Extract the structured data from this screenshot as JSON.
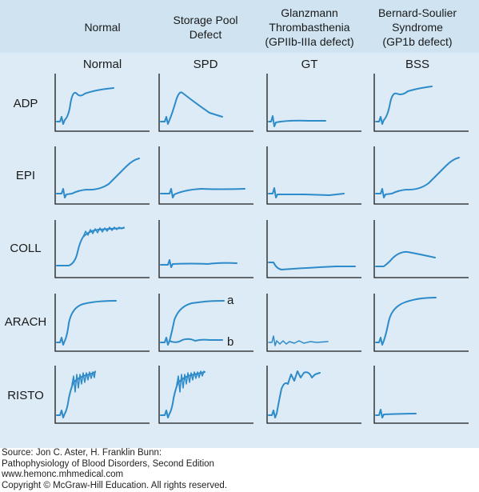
{
  "columns": [
    {
      "header": "Normal",
      "sub": "Normal"
    },
    {
      "header": "Storage Pool\nDefect",
      "sub": "SPD"
    },
    {
      "header": "Glanzmann\nThrombasthenia\n(GPIIb-IIIa defect)",
      "sub": "GT"
    },
    {
      "header": "Bernard-Soulier\nSyndrome\n(GP1b defect)",
      "sub": "BSS"
    }
  ],
  "rows": [
    {
      "label": "ADP"
    },
    {
      "label": "EPI"
    },
    {
      "label": "COLL"
    },
    {
      "label": "ARACH"
    },
    {
      "label": "RISTO"
    }
  ],
  "curve_labels": {
    "a": "a",
    "b": "b"
  },
  "colors": {
    "curve": "#2e8bc9",
    "panel": "#dcebf5",
    "header": "#cfe3f1",
    "axis": "#1a1a1a"
  },
  "source": {
    "line1": "Source: Jon C. Aster, H. Franklin Bunn:",
    "line2": "Pathophysiology of Blood Disorders, Second Edition",
    "line3": "www.hemonc.mhmedical.com",
    "line4": "Copyright © McGraw-Hill Education. All rights reserved."
  }
}
